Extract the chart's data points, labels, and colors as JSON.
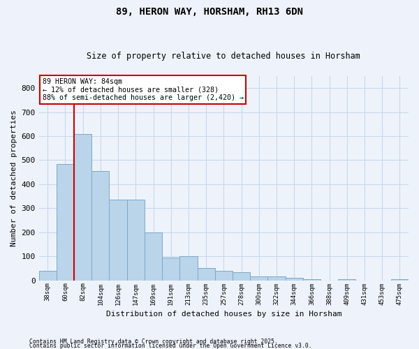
{
  "title": "89, HERON WAY, HORSHAM, RH13 6DN",
  "subtitle": "Size of property relative to detached houses in Horsham",
  "xlabel": "Distribution of detached houses by size in Horsham",
  "ylabel": "Number of detached properties",
  "categories": [
    "38sqm",
    "60sqm",
    "82sqm",
    "104sqm",
    "126sqm",
    "147sqm",
    "169sqm",
    "191sqm",
    "213sqm",
    "235sqm",
    "257sqm",
    "278sqm",
    "300sqm",
    "322sqm",
    "344sqm",
    "366sqm",
    "388sqm",
    "409sqm",
    "431sqm",
    "453sqm",
    "475sqm"
  ],
  "values": [
    40,
    485,
    610,
    455,
    335,
    335,
    200,
    95,
    100,
    50,
    40,
    35,
    15,
    15,
    10,
    5,
    0,
    5,
    0,
    0,
    5
  ],
  "bar_color": "#bad4ea",
  "bar_edge_color": "#7aaac8",
  "grid_color": "#c8d8ec",
  "bg_color": "#eef3fb",
  "red_line_index": 2,
  "annotation_text": "89 HERON WAY: 84sqm\n← 12% of detached houses are smaller (328)\n88% of semi-detached houses are larger (2,420) →",
  "annotation_box_color": "#ffffff",
  "annotation_border_color": "#cc0000",
  "ylim": [
    0,
    850
  ],
  "yticks": [
    0,
    100,
    200,
    300,
    400,
    500,
    600,
    700,
    800
  ],
  "footnote1": "Contains HM Land Registry data © Crown copyright and database right 2025.",
  "footnote2": "Contains public sector information licensed under the Open Government Licence v3.0."
}
